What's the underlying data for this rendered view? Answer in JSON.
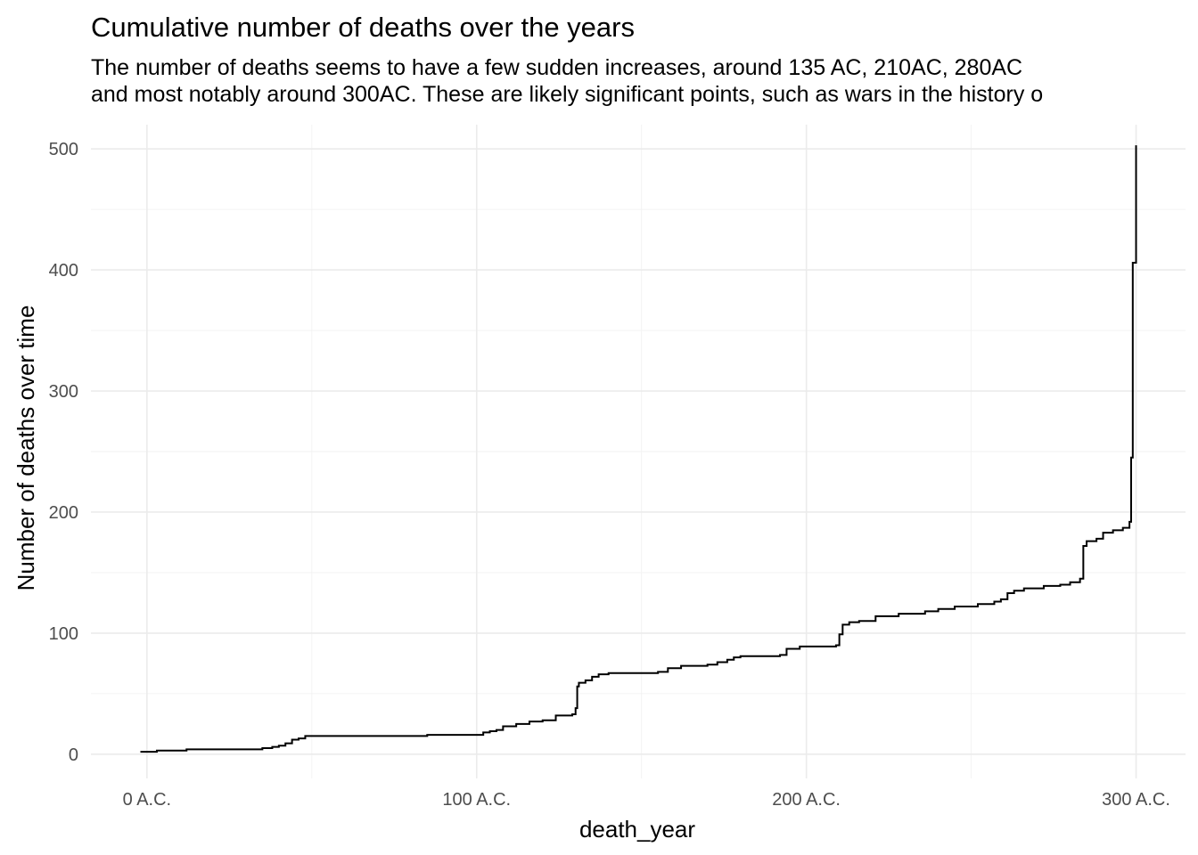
{
  "chart_data": {
    "type": "line",
    "step": true,
    "title": "Cumulative number of deaths over the years",
    "subtitle": [
      "The number of deaths seems to have a few sudden increases, around 135 AC, 210AC, 280AC",
      "and most notably around 300AC. These are likely significant points, such as wars in the history o"
    ],
    "xlabel": "death_year",
    "ylabel": "Number of deaths over time",
    "xlim": [
      -17,
      315
    ],
    "ylim": [
      -20,
      520
    ],
    "grid": true,
    "x_ticks": [
      {
        "value": 0,
        "label": "0 A.C."
      },
      {
        "value": 100,
        "label": "100 A.C."
      },
      {
        "value": 200,
        "label": "200 A.C."
      },
      {
        "value": 300,
        "label": "300 A.C."
      }
    ],
    "x_minor_ticks": [
      50,
      150,
      250
    ],
    "y_ticks": [
      {
        "value": 0,
        "label": "0"
      },
      {
        "value": 100,
        "label": "100"
      },
      {
        "value": 200,
        "label": "200"
      },
      {
        "value": 300,
        "label": "300"
      },
      {
        "value": 400,
        "label": "400"
      },
      {
        "value": 500,
        "label": "500"
      }
    ],
    "y_minor_ticks": [
      50,
      150,
      250,
      350,
      450
    ],
    "series": [
      {
        "points": [
          [
            -2,
            2
          ],
          [
            3,
            3
          ],
          [
            8,
            3
          ],
          [
            12,
            4
          ],
          [
            30,
            4
          ],
          [
            35,
            5
          ],
          [
            38,
            6
          ],
          [
            40,
            7
          ],
          [
            42,
            9
          ],
          [
            44,
            12
          ],
          [
            46,
            13
          ],
          [
            48,
            15
          ],
          [
            50,
            15
          ],
          [
            80,
            15
          ],
          [
            85,
            16
          ],
          [
            100,
            16
          ],
          [
            102,
            18
          ],
          [
            104,
            19
          ],
          [
            106,
            20
          ],
          [
            108,
            23
          ],
          [
            112,
            25
          ],
          [
            116,
            27
          ],
          [
            120,
            28
          ],
          [
            124,
            32
          ],
          [
            129,
            33
          ],
          [
            130,
            38
          ],
          [
            130.5,
            56
          ],
          [
            131,
            59
          ],
          [
            133,
            61
          ],
          [
            135,
            64
          ],
          [
            137,
            66
          ],
          [
            140,
            67
          ],
          [
            155,
            68
          ],
          [
            158,
            71
          ],
          [
            162,
            73
          ],
          [
            170,
            74
          ],
          [
            173,
            76
          ],
          [
            176,
            78
          ],
          [
            178,
            80
          ],
          [
            180,
            81
          ],
          [
            192,
            82
          ],
          [
            194,
            87
          ],
          [
            198,
            89
          ],
          [
            209,
            90
          ],
          [
            210,
            99
          ],
          [
            211,
            107
          ],
          [
            213,
            109
          ],
          [
            216,
            110
          ],
          [
            221,
            114
          ],
          [
            228,
            116
          ],
          [
            236,
            118
          ],
          [
            240,
            120
          ],
          [
            245,
            122
          ],
          [
            252,
            124
          ],
          [
            257,
            126
          ],
          [
            259,
            128
          ],
          [
            261,
            133
          ],
          [
            263,
            135
          ],
          [
            266,
            137
          ],
          [
            272,
            139
          ],
          [
            277,
            140
          ],
          [
            280,
            142
          ],
          [
            283,
            145
          ],
          [
            284,
            172
          ],
          [
            285,
            176
          ],
          [
            288,
            178
          ],
          [
            290,
            183
          ],
          [
            293,
            185
          ],
          [
            296,
            187
          ],
          [
            298,
            192
          ],
          [
            298.5,
            245
          ],
          [
            299,
            406
          ],
          [
            300,
            408
          ],
          [
            300,
            503
          ]
        ]
      }
    ]
  }
}
